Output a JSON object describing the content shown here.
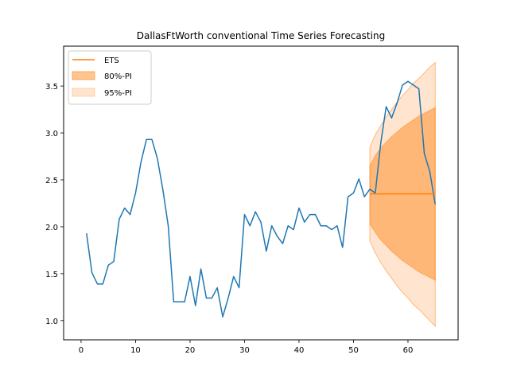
{
  "chart_data": {
    "type": "line",
    "title": "DallasFtWorth conventional Time Series Forecasting",
    "xlabel": "",
    "ylabel": "",
    "xlim": [
      -3.2,
      69.2
    ],
    "ylim": [
      0.795,
      3.925
    ],
    "xticks": [
      0,
      10,
      20,
      30,
      40,
      50,
      60
    ],
    "yticks": [
      1.0,
      1.5,
      2.0,
      2.5,
      3.0,
      3.5
    ],
    "ytick_labels": [
      "1.0",
      "1.5",
      "2.0",
      "2.5",
      "3.0",
      "3.5"
    ],
    "grid": false,
    "legend_position": "top-left",
    "legend": [
      {
        "label": "ETS",
        "kind": "line",
        "color": "#ff7f0e"
      },
      {
        "label": "80%-PI",
        "kind": "band",
        "color": "#ff7f0e"
      },
      {
        "label": "95%-PI",
        "kind": "band",
        "color": "#ff7f0e"
      }
    ],
    "colors": {
      "actual": "#1f77b4",
      "forecast": "#ff7f0e"
    },
    "series": [
      {
        "kind": "actual",
        "x": [
          1,
          2,
          3,
          4,
          5,
          6,
          7,
          8,
          9,
          10,
          11,
          12,
          13,
          14,
          15,
          16,
          17,
          18,
          19,
          20,
          21,
          22,
          23,
          24,
          25,
          26,
          27,
          28,
          29,
          30,
          31,
          32,
          33,
          34,
          35,
          36,
          37,
          38,
          39,
          40,
          41,
          42,
          43,
          44,
          45,
          46,
          47,
          48,
          49,
          50,
          51,
          52,
          53,
          54,
          55,
          56,
          57,
          58,
          59,
          60,
          61,
          62,
          63,
          64,
          65
        ],
        "y": [
          1.93,
          1.51,
          1.39,
          1.39,
          1.59,
          1.63,
          2.08,
          2.2,
          2.13,
          2.36,
          2.69,
          2.93,
          2.93,
          2.73,
          2.4,
          2.01,
          1.2,
          1.2,
          1.2,
          1.47,
          1.16,
          1.55,
          1.24,
          1.24,
          1.35,
          1.04,
          1.24,
          1.47,
          1.35,
          2.13,
          2.01,
          2.16,
          2.05,
          1.74,
          2.01,
          1.9,
          1.82,
          2.01,
          1.97,
          2.2,
          2.05,
          2.13,
          2.13,
          2.01,
          2.01,
          1.97,
          2.01,
          1.78,
          2.32,
          2.36,
          2.51,
          2.32,
          2.4,
          2.36,
          2.89,
          3.28,
          3.16,
          3.32,
          3.51,
          3.55,
          3.51,
          3.47,
          2.78,
          2.59,
          2.24
        ]
      },
      {
        "kind": "forecast",
        "name": "ETS",
        "x": [
          53,
          65
        ],
        "y": [
          2.35,
          2.35
        ]
      }
    ],
    "intervals": [
      {
        "name": "95%-PI",
        "opacity": 0.2,
        "x": [
          53,
          54,
          55,
          56,
          57,
          58,
          59,
          60,
          61,
          62,
          63,
          64,
          65
        ],
        "upper": [
          2.85,
          2.98,
          3.08,
          3.17,
          3.25,
          3.33,
          3.4,
          3.46,
          3.53,
          3.58,
          3.64,
          3.7,
          3.75
        ],
        "lower": [
          1.85,
          1.72,
          1.62,
          1.53,
          1.45,
          1.37,
          1.3,
          1.24,
          1.17,
          1.12,
          1.06,
          1.0,
          0.94
        ]
      },
      {
        "name": "80%-PI",
        "opacity": 0.45,
        "x": [
          53,
          54,
          55,
          56,
          57,
          58,
          59,
          60,
          61,
          62,
          63,
          64,
          65
        ],
        "upper": [
          2.65,
          2.76,
          2.84,
          2.9,
          2.96,
          3.01,
          3.06,
          3.1,
          3.14,
          3.18,
          3.21,
          3.24,
          3.27
        ],
        "lower": [
          2.03,
          1.94,
          1.86,
          1.8,
          1.74,
          1.69,
          1.64,
          1.6,
          1.56,
          1.52,
          1.49,
          1.46,
          1.43
        ]
      }
    ]
  }
}
